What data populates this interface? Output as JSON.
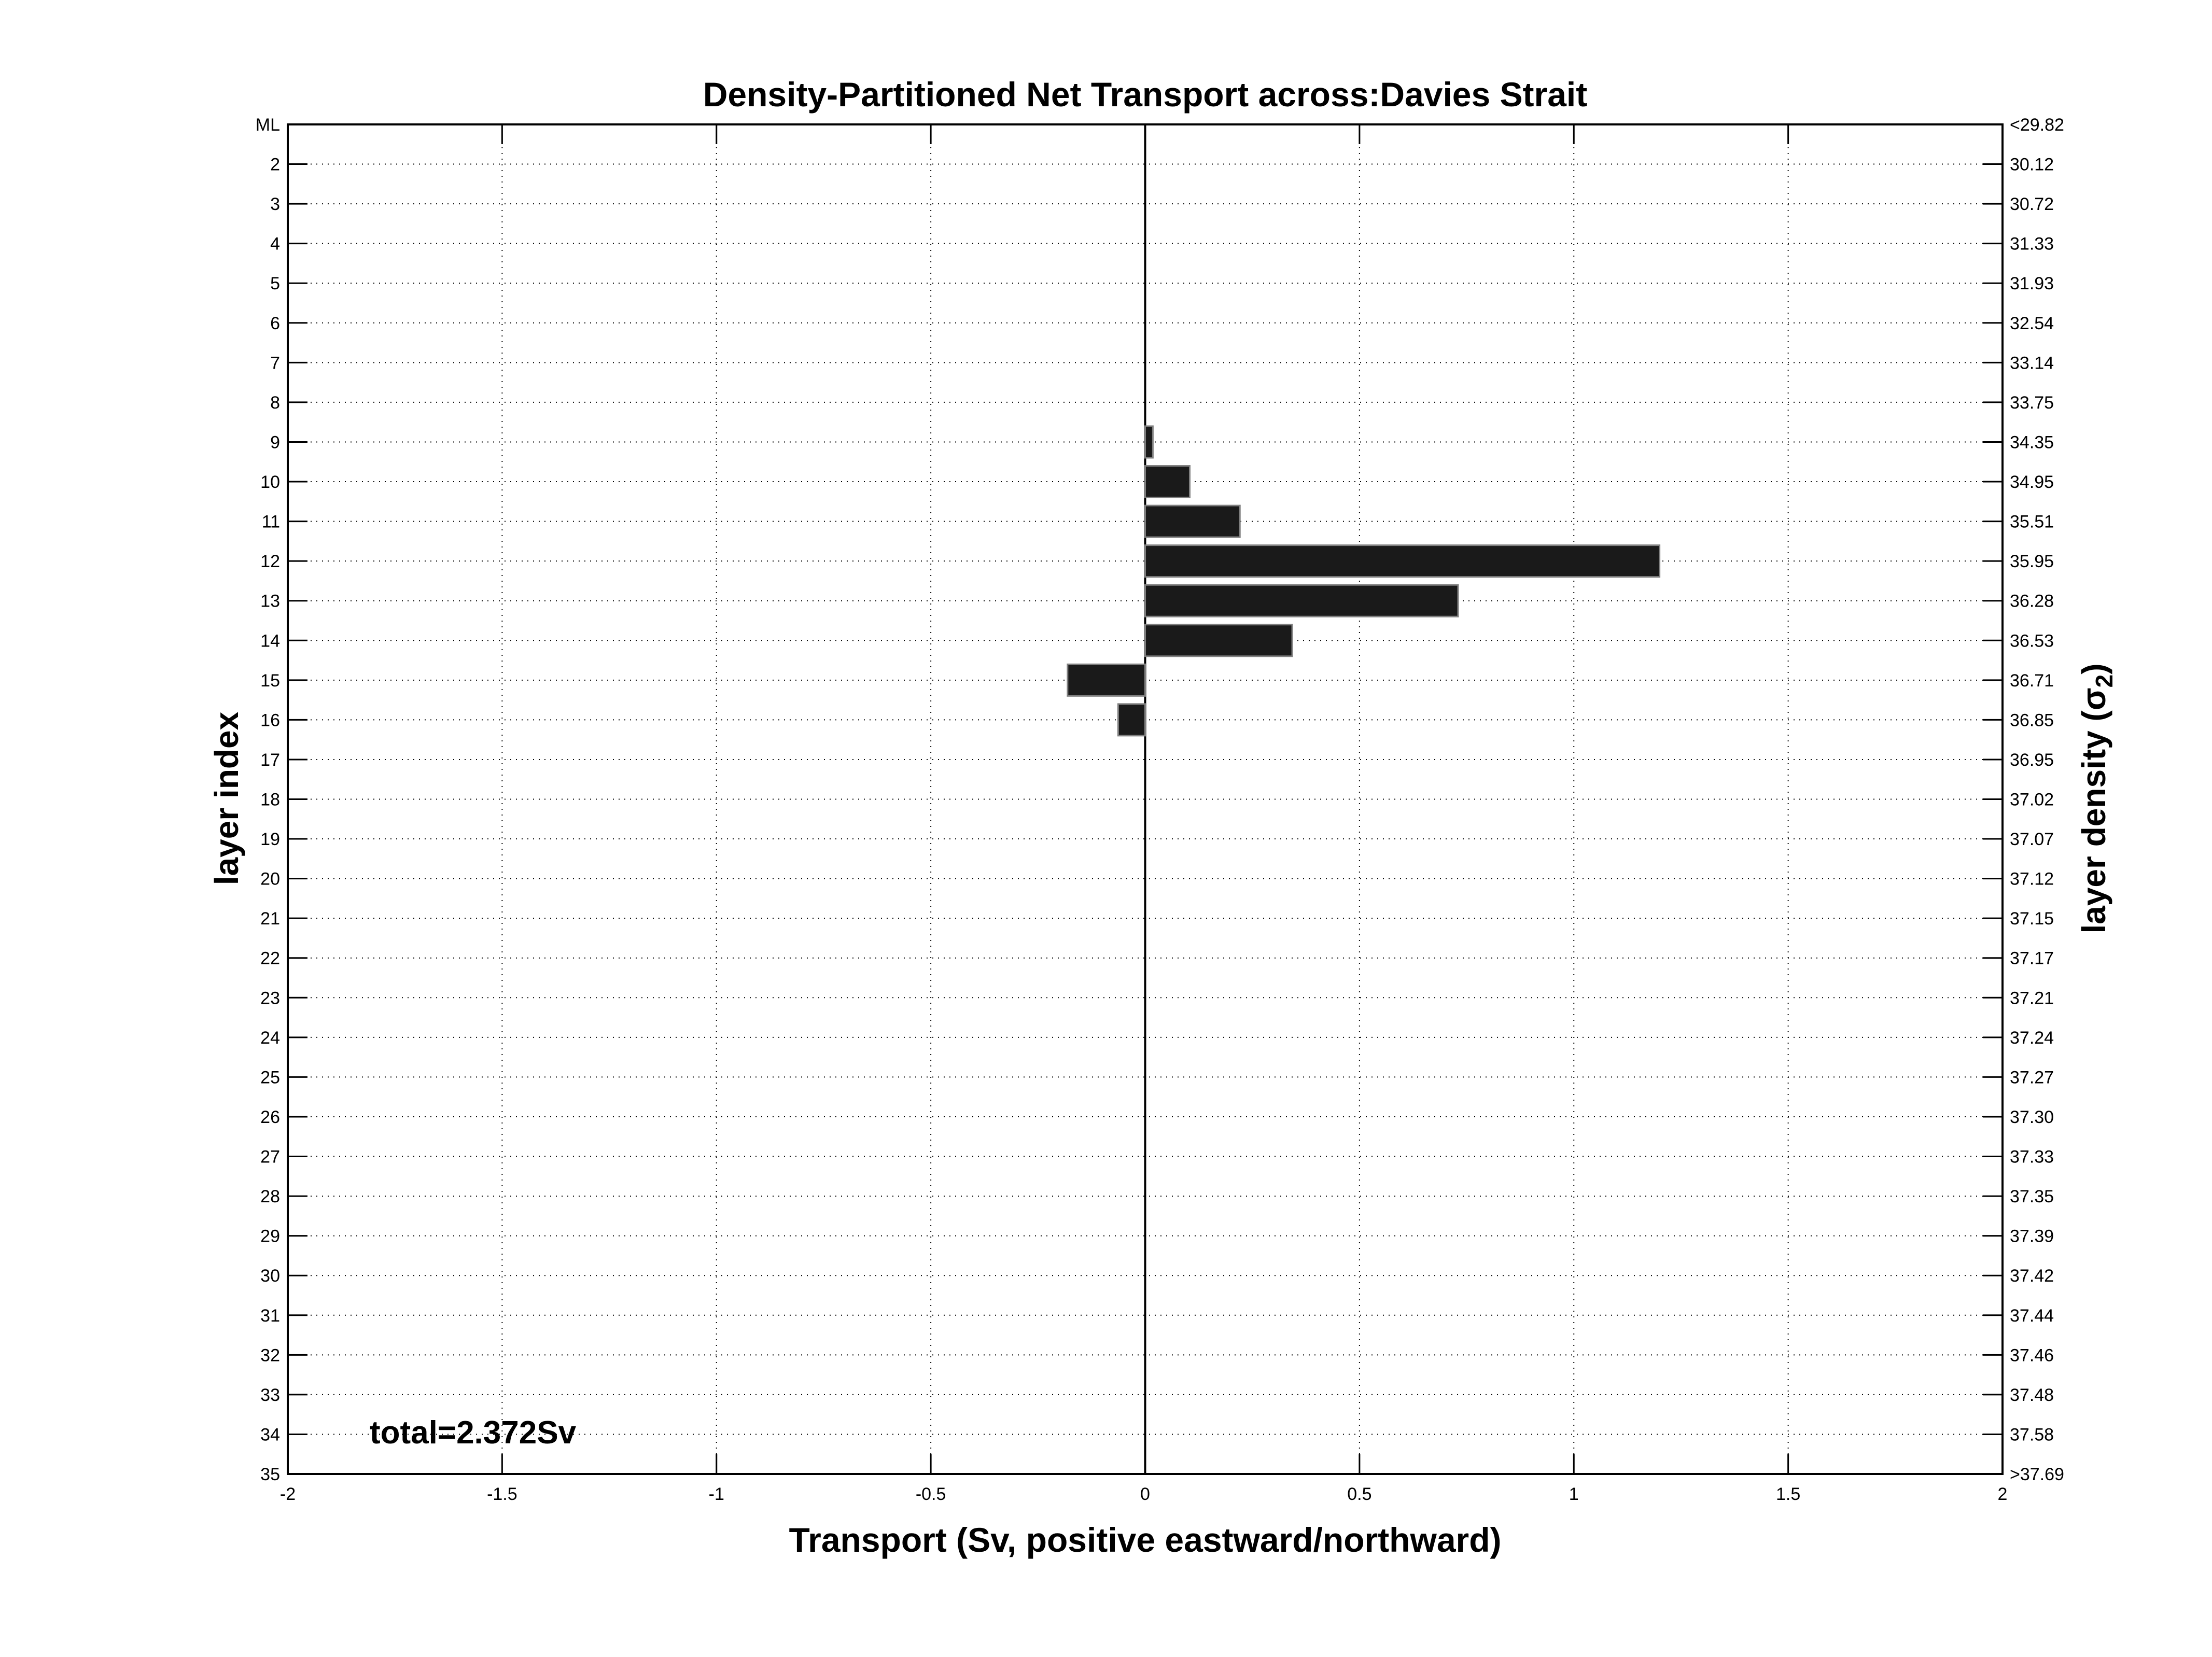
{
  "title": "Density-Partitioned Net Transport across:Davies Strait",
  "axes": {
    "xlabel": "Transport (Sv, positive eastward/northward)",
    "ylabel_left": "layer index",
    "ylabel_right_prefix": "layer density (σ",
    "ylabel_right_subscript": "2",
    "ylabel_right_suffix": ")"
  },
  "annotation": {
    "total_label": "total=2.372Sv"
  },
  "chart_data": {
    "type": "bar",
    "orientation": "horizontal",
    "title": "Density-Partitioned Net Transport across:Davies Strait",
    "xlabel": "Transport (Sv, positive eastward/northward)",
    "ylabel_left": "layer index",
    "ylabel_right": "layer density (σ2)",
    "categories": [
      "ML",
      "2",
      "3",
      "4",
      "5",
      "6",
      "7",
      "8",
      "9",
      "10",
      "11",
      "12",
      "13",
      "14",
      "15",
      "16",
      "17",
      "18",
      "19",
      "20",
      "21",
      "22",
      "23",
      "24",
      "25",
      "26",
      "27",
      "28",
      "29",
      "30",
      "31",
      "32",
      "33",
      "34",
      "35"
    ],
    "values": [
      0,
      0,
      0,
      0,
      0,
      0,
      0,
      0,
      0.018,
      0.104,
      0.221,
      1.2,
      0.73,
      0.343,
      -0.181,
      -0.063,
      0,
      0,
      0,
      0,
      0,
      0,
      0,
      0,
      0,
      0,
      0,
      0,
      0,
      0,
      0,
      0,
      0,
      0,
      0
    ],
    "right_axis_labels": [
      "<29.82",
      "30.12",
      "30.72",
      "31.33",
      "31.93",
      "32.54",
      "33.14",
      "33.75",
      "34.35",
      "34.95",
      "35.51",
      "35.95",
      "36.28",
      "36.53",
      "36.71",
      "36.85",
      "36.95",
      "37.02",
      "37.07",
      "37.12",
      "37.15",
      "37.17",
      "37.21",
      "37.24",
      "37.27",
      "37.30",
      "37.33",
      "37.35",
      "37.39",
      "37.42",
      "37.44",
      "37.46",
      "37.48",
      "37.58",
      ">37.69"
    ],
    "x_ticks": [
      -2,
      -1.5,
      -1,
      -0.5,
      0,
      0.5,
      1,
      1.5,
      2
    ],
    "x_tick_labels": [
      "-2",
      "-1.5",
      "-1",
      "-0.5",
      "0",
      "0.5",
      "1",
      "1.5",
      "2"
    ],
    "xlim": [
      -2,
      2
    ],
    "grid": "dotted",
    "grid_on": true,
    "legend": "none",
    "bar_color": "#1a1a1a",
    "bar_edge_color": "#808080",
    "axis_color": "#000000",
    "total_sv": 2.372
  }
}
